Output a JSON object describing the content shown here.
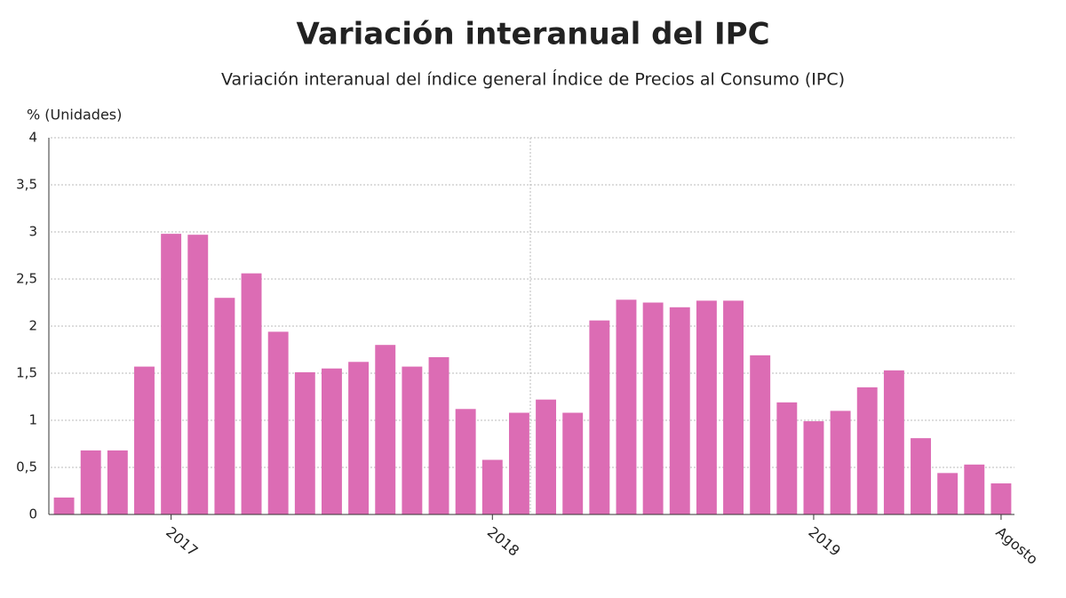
{
  "chart_data": {
    "type": "bar",
    "title": "Variación interanual del IPC",
    "subtitle": "Variación interanual del índice general Índice de Precios al Consumo (IPC)",
    "y_label": "% (Unidades)",
    "categories": [
      null,
      null,
      null,
      null,
      "2017",
      null,
      null,
      null,
      null,
      null,
      null,
      null,
      null,
      null,
      null,
      null,
      "2018",
      null,
      null,
      null,
      null,
      null,
      null,
      null,
      null,
      null,
      null,
      null,
      "2019",
      null,
      null,
      null,
      null,
      null,
      null,
      "Agosto"
    ],
    "values": [
      0.18,
      0.68,
      0.68,
      1.57,
      2.98,
      2.97,
      2.3,
      2.56,
      1.94,
      1.51,
      1.55,
      1.62,
      1.8,
      1.57,
      1.67,
      1.12,
      0.58,
      1.08,
      1.22,
      1.08,
      2.06,
      2.28,
      2.25,
      2.2,
      2.27,
      2.27,
      1.69,
      1.19,
      0.99,
      1.1,
      1.35,
      1.53,
      0.81,
      0.44,
      0.53,
      0.33
    ],
    "color": "#dc6cb4",
    "ylim": [
      0,
      4
    ],
    "yticks": [
      0,
      {
        "value": 0.5,
        "label": "0,5"
      },
      1,
      {
        "value": 1.5,
        "label": "1,5"
      },
      2,
      {
        "value": 2.5,
        "label": "2,5"
      },
      3,
      {
        "value": 3.5,
        "label": "3,5"
      },
      4
    ],
    "grid": true
  }
}
